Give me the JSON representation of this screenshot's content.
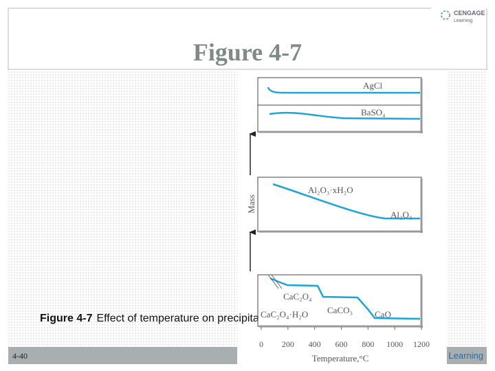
{
  "slide": {
    "title": "Figure 4-7",
    "caption": {
      "label": "Figure 4-7",
      "text": "Effect of temperature on precipitate mass."
    },
    "page_number": "4-40",
    "footer_brand": "Learning",
    "logo": {
      "name": "CENGAGE",
      "sub": "Learning"
    }
  },
  "figure": {
    "y_label": "Mass",
    "x_label": "Temperature,°C",
    "xlim": [
      0,
      1200
    ],
    "xticks": [
      0,
      200,
      400,
      600,
      800,
      1000,
      1200
    ],
    "panels": [
      {
        "labels": [
          "AgCl",
          "BaSO₄"
        ]
      },
      {
        "labels": [
          "Al₂O₃·xH₂O",
          "Al₂O₃"
        ]
      },
      {
        "labels": [
          "CaC₂O₄",
          "CaC₂O₄·H₂O",
          "CaCO₃",
          "CaO"
        ]
      }
    ]
  }
}
